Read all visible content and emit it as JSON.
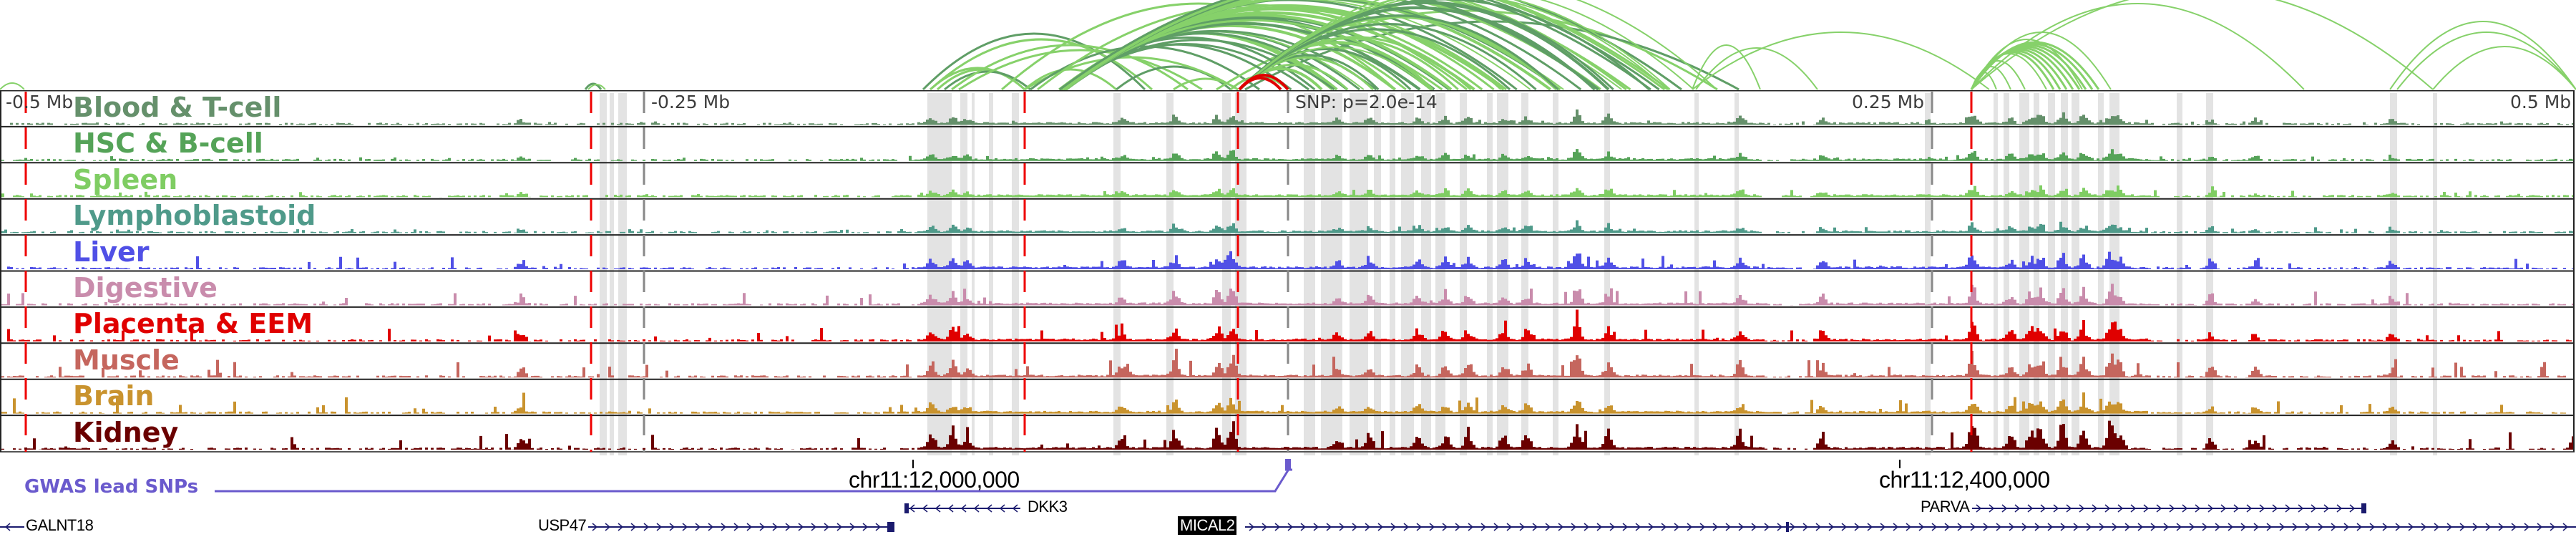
{
  "tracks": [
    {
      "name": "Blood & T-cell",
      "color": "#65906b"
    },
    {
      "name": "HSC & B-cell",
      "color": "#55a358"
    },
    {
      "name": "Spleen",
      "color": "#7fcd63"
    },
    {
      "name": "Lymphoblastoid",
      "color": "#4f9a8a"
    },
    {
      "name": "Liver",
      "color": "#5050e6"
    },
    {
      "name": "Digestive",
      "color": "#c98cac"
    },
    {
      "name": "Placenta & EEM",
      "color": "#e00000"
    },
    {
      "name": "Muscle",
      "color": "#c5665e"
    },
    {
      "name": "Brain",
      "color": "#c9932e"
    },
    {
      "name": "Kidney",
      "color": "#6a0000"
    }
  ],
  "axis": {
    "left_label": "-0.5 Mb",
    "mid_left_label": "-0.25 Mb",
    "snp_label": "SNP: p=2.0e-14",
    "mid_right_label": "0.25 Mb",
    "right_label": "0.5 Mb"
  },
  "coordinates": {
    "left": "chr11:12,000,000",
    "right": "chr11:12,400,000"
  },
  "gwas": {
    "label": "GWAS lead SNPs",
    "color": "#6a5acd"
  },
  "genes": [
    {
      "name": "GALNT18",
      "strand": "-",
      "highlight": false
    },
    {
      "name": "USP47",
      "strand": "+",
      "highlight": false
    },
    {
      "name": "DKK3",
      "strand": "-",
      "highlight": false
    },
    {
      "name": "MICAL2",
      "strand": "+",
      "highlight": true
    },
    {
      "name": "PARVA",
      "strand": "+",
      "highlight": false
    }
  ],
  "colors": {
    "arc_light": "#86d16a",
    "arc_dark": "#5f9e66",
    "arc_highlight": "#e00000",
    "enhancer_shade": "#e3e3e3",
    "red_marker": "#ee0000",
    "gene": "#1b1b6e"
  }
}
